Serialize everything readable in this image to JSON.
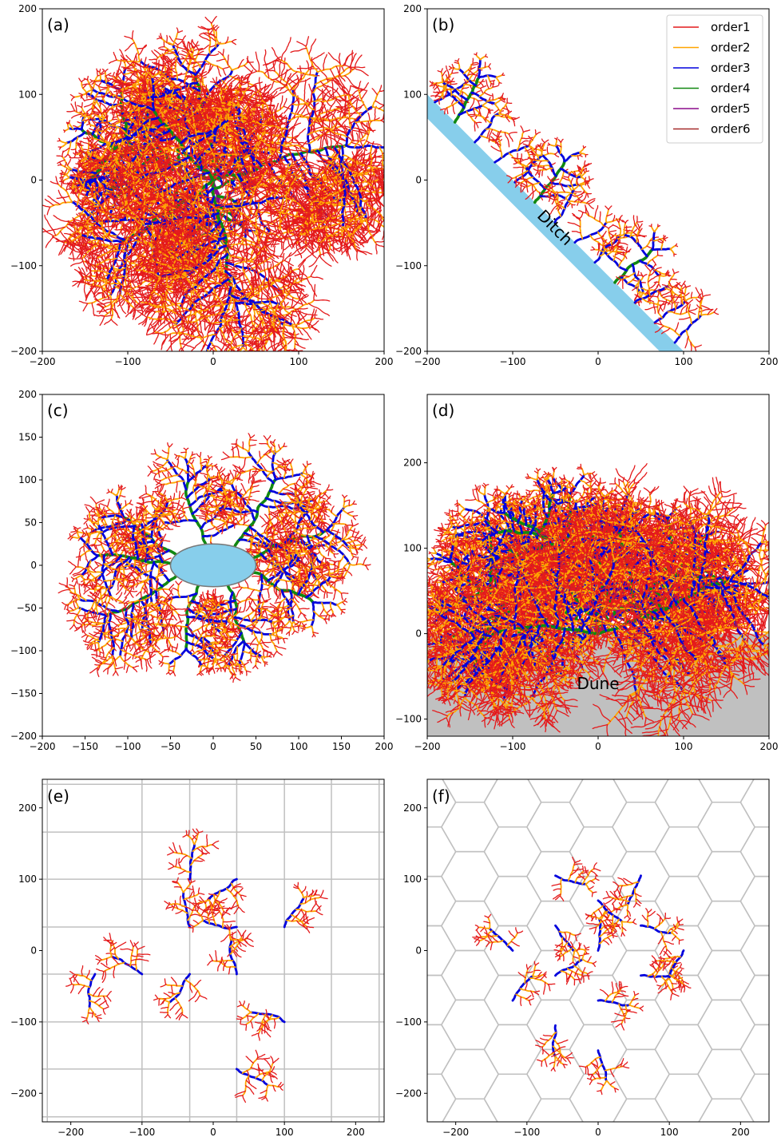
{
  "legend": [
    {
      "label": "order1",
      "color": "#e41a1c"
    },
    {
      "label": "order2",
      "color": "#ffa500"
    },
    {
      "label": "order3",
      "color": "#0000dd"
    },
    {
      "label": "order4",
      "color": "#118811"
    },
    {
      "label": "order5",
      "color": "#8b0a8b"
    },
    {
      "label": "order6",
      "color": "#a52a2a"
    }
  ],
  "chart_data": [
    {
      "type": "scatter",
      "panel": "(a)",
      "xlim": [
        -200,
        200
      ],
      "ylim": [
        -200,
        200
      ],
      "xticks": [
        -200,
        -100,
        0,
        100,
        200
      ],
      "yticks": [
        -200,
        -100,
        0,
        100,
        200
      ],
      "grid": false,
      "outlet": [
        0,
        0
      ],
      "trunks": [
        {
          "order": 5,
          "angle": 160,
          "length": 125
        },
        {
          "order": 5,
          "angle": 35,
          "length": 45
        },
        {
          "order": 5,
          "angle": 265,
          "length": 60
        },
        {
          "order": 4,
          "angle": 95,
          "length": 130
        },
        {
          "order": 4,
          "angle": 20,
          "length": 165
        },
        {
          "order": 4,
          "angle": 215,
          "length": 135
        },
        {
          "order": 4,
          "angle": 275,
          "length": 150
        },
        {
          "order": 4,
          "angle": 130,
          "length": 110
        }
      ]
    },
    {
      "type": "scatter",
      "panel": "(b)",
      "xlim": [
        -200,
        200
      ],
      "ylim": [
        -200,
        200
      ],
      "xticks": [
        -200,
        -100,
        0,
        100,
        200
      ],
      "yticks": [
        -200,
        -100,
        0,
        100,
        200
      ],
      "grid": false,
      "annotation": "Ditch",
      "ditch_line": [
        [
          -200,
          100
        ],
        [
          100,
          -200
        ]
      ]
    },
    {
      "type": "scatter",
      "panel": "(c)",
      "xlim": [
        -200,
        200
      ],
      "ylim": [
        -200,
        200
      ],
      "xticks": [
        -200,
        -150,
        -100,
        -50,
        0,
        50,
        100,
        150,
        200
      ],
      "yticks": [
        -200,
        -150,
        -100,
        -50,
        0,
        50,
        100,
        150,
        200
      ],
      "grid": false,
      "lake_ellipse": {
        "cx": 0,
        "cy": 0,
        "rx": 50,
        "ry": 25
      }
    },
    {
      "type": "scatter",
      "panel": "(d)",
      "xlim": [
        -200,
        200
      ],
      "ylim": [
        -120,
        280
      ],
      "xticks": [
        -200,
        -100,
        0,
        100,
        200
      ],
      "yticks": [
        -100,
        0,
        100,
        200
      ],
      "grid": false,
      "annotation": "Dune",
      "dune_top": 0,
      "outlet": [
        0,
        0
      ]
    },
    {
      "type": "scatter",
      "panel": "(e)",
      "xlim": [
        -240,
        240
      ],
      "ylim": [
        -240,
        240
      ],
      "xticks": [
        -200,
        -100,
        0,
        100,
        200
      ],
      "yticks": [
        -200,
        -100,
        0,
        100,
        200
      ],
      "grid": true,
      "grid_type": "square"
    },
    {
      "type": "scatter",
      "panel": "(f)",
      "xlim": [
        -240,
        240
      ],
      "ylim": [
        -240,
        240
      ],
      "xticks": [
        -200,
        -100,
        0,
        100,
        200
      ],
      "yticks": [
        -200,
        -100,
        0,
        100,
        200
      ],
      "grid": true,
      "grid_type": "hexagonal"
    }
  ]
}
